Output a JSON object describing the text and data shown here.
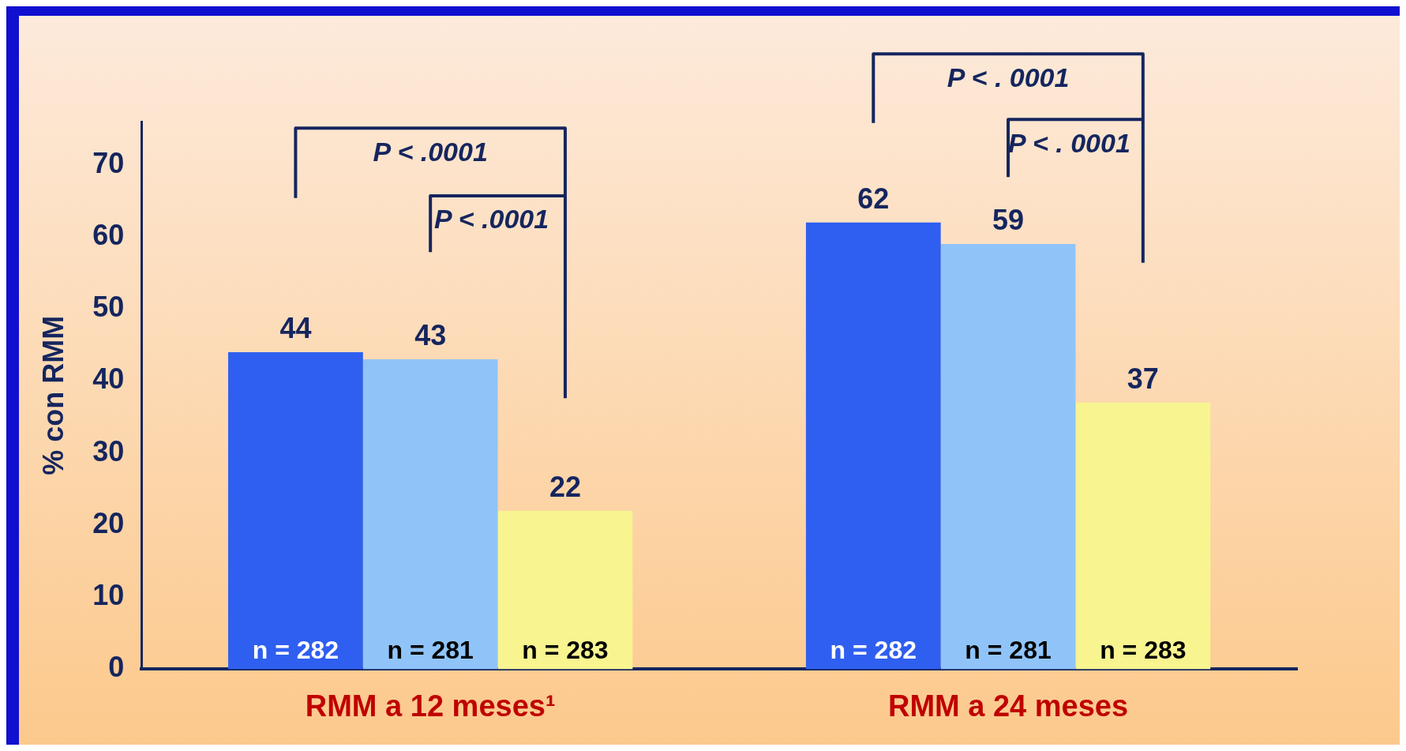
{
  "chart_data": {
    "type": "bar",
    "ylabel": "% con RMM",
    "categories": [
      "RMM a 12 meses¹",
      "RMM a 24 meses"
    ],
    "series": [
      {
        "color": "#2f5ff0",
        "values": [
          44,
          62
        ]
      },
      {
        "color": "#90c4f8",
        "values": [
          43,
          59
        ]
      },
      {
        "color": "#f8f490",
        "values": [
          22,
          37
        ]
      }
    ],
    "ylim": [
      0,
      76
    ],
    "yticks": [
      0,
      10,
      20,
      30,
      40,
      50,
      60,
      70
    ],
    "grid": false,
    "legend": false,
    "data_labels": true,
    "annotations": [
      "n = 282",
      "n = 281",
      "n = 283",
      "n = 282",
      "n = 281",
      "n = 283",
      "P < .0001",
      "P < .0001",
      "P < . 0001",
      "P < . 0001"
    ]
  }
}
